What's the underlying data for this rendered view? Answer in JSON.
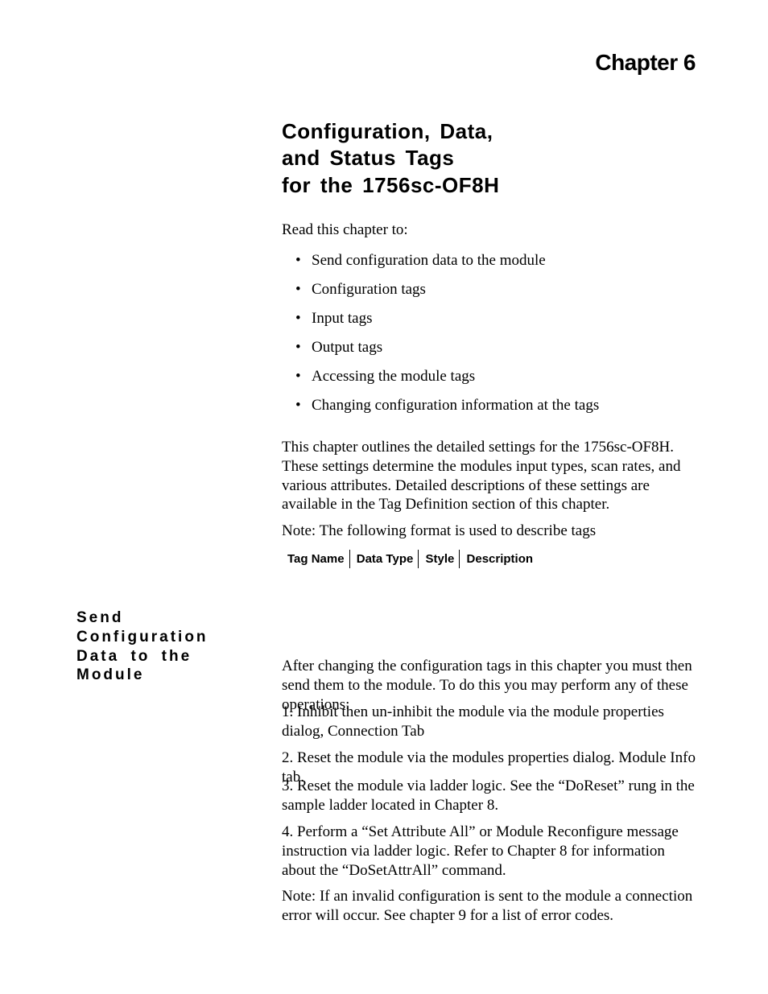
{
  "chapter_label": "Chapter 6",
  "title_line1": "Configuration, Data,",
  "title_line2": "and Status Tags",
  "title_line3": "for the 1756sc-OF8H",
  "intro_line": "Read this chapter to:",
  "bullets": {
    "b0": "Send configuration data to the module",
    "b1": "Configuration tags",
    "b2": "Input tags",
    "b3": "Output tags",
    "b4": "Accessing the module tags",
    "b5": "Changing configuration information at the tags"
  },
  "para1": "This chapter outlines the detailed settings for the 1756sc-OF8H.  These settings determine the modules input types, scan rates, and various attributes.  Detailed descriptions of these settings are available in the Tag Definition section of this chapter.",
  "para2": "Note: The following format is used to describe tags",
  "format": {
    "c0": "Tag Name",
    "c1": "Data Type",
    "c2": "Style",
    "c3": "Description"
  },
  "side_heading": "Send Configuration Data to the Module",
  "para3": "After changing the configuration tags in this chapter you must then send them to the module.  To do this you may perform any of these operations:",
  "para4": "1. Inhibit then un-inhibit the module via the module properties dialog, Connection Tab",
  "para5": "2. Reset the module via the modules  properties dialog.  Module Info tab.",
  "para6": "3. Reset the module via ladder logic.  See the “DoReset” rung in the sample ladder located in Chapter 8.",
  "para7": "4. Perform a “Set Attribute All” or Module Reconfigure message instruction via ladder logic.  Refer to Chapter 8 for information about the “DoSetAttrAll” command.",
  "para8": "Note: If an invalid configuration is sent to the module a connection error will occur.  See chapter 9 for a list of error codes."
}
